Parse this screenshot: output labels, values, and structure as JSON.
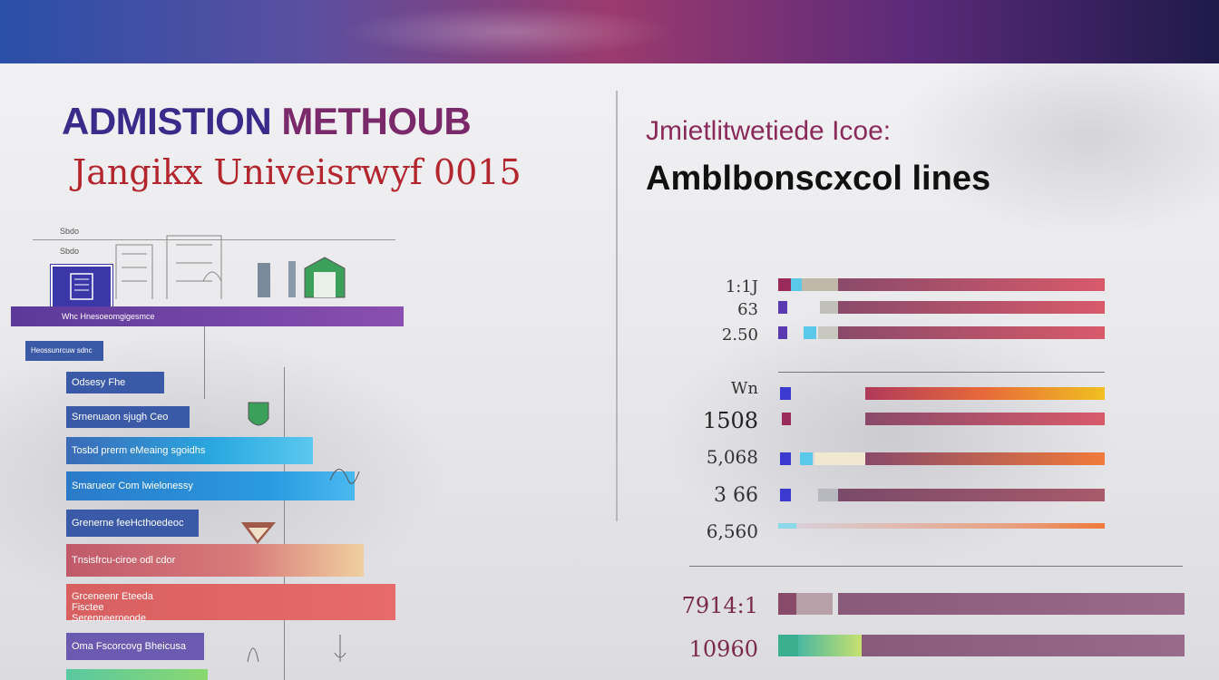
{
  "header": {
    "title_part1": "ADMISTION ",
    "title_part2": "METHOUB",
    "subtitle": "Jangikx Univeisrwyf 0015"
  },
  "right_panel": {
    "heading": "Jmietlitwetiede Icoe:",
    "subheading": "Amblbonscxcol lines"
  },
  "left_diagram": {
    "top_labels": [
      "Sbdo",
      "Sbdo"
    ],
    "band_label": "Whc Hnesoeomgigesmce",
    "bars": [
      {
        "label": "Heossunrcuw sdnc",
        "color": "#3a5aa8"
      },
      {
        "label": "Odsesy Fhe",
        "color": "#3a5aa8"
      },
      {
        "label": "Srnenuaon sjugh Ceo",
        "color": "#3a5aa8"
      },
      {
        "label": "Tosbd prerm eMeaing sgoidhs",
        "color": "#2aa0d8"
      },
      {
        "label": "Smarueor Com lwielonessy",
        "color": "#2a8ad0"
      },
      {
        "label": "Grenerne feeHcthoedeoc",
        "color": "#3a5aa8"
      },
      {
        "label": "Tnsisfrcu-ciroe  odl cdor",
        "color": "#c75a6a"
      },
      {
        "label": "Grceneenr Eteeda Fisctee Serenneeroeode",
        "color": "#e06060"
      },
      {
        "label": "Oma Fscorcovg Bheicusa",
        "color": "#6a5ab0"
      }
    ]
  },
  "right_chart": {
    "rows": [
      {
        "label": "1:1J"
      },
      {
        "label": "63"
      },
      {
        "label": "2.50"
      },
      {
        "label": "Wn"
      },
      {
        "label": "1508"
      },
      {
        "label": "5,068"
      },
      {
        "label": "3 66"
      },
      {
        "label": "6,560"
      },
      {
        "label": "7914:1"
      },
      {
        "label": "10960"
      }
    ]
  }
}
